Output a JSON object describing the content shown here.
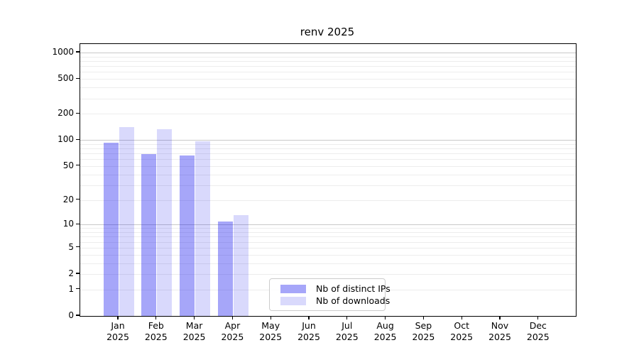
{
  "chart_data": {
    "type": "bar",
    "title": "renv 2025",
    "x_year_label": "2025",
    "categories": [
      "Jan",
      "Feb",
      "Mar",
      "Apr",
      "May",
      "Jun",
      "Jul",
      "Aug",
      "Sep",
      "Oct",
      "Nov",
      "Dec"
    ],
    "series": [
      {
        "name": "Nb of distinct IPs",
        "color": "#a6a6f8",
        "fill": "rgba(0,0,238,0.35)",
        "values": [
          93,
          69,
          66,
          11,
          0,
          0,
          0,
          0,
          0,
          0,
          0,
          0
        ]
      },
      {
        "name": "Nb of downloads",
        "color": "#d9d9fb",
        "fill": "rgba(0,0,238,0.15)",
        "values": [
          142,
          132,
          96,
          13,
          0,
          0,
          0,
          0,
          0,
          0,
          0,
          0
        ]
      }
    ],
    "y_scale": "log10(value+1)",
    "y_ticks": [
      0,
      1,
      2,
      5,
      10,
      20,
      50,
      100,
      200,
      500,
      1000
    ],
    "ylim": [
      0,
      1250
    ],
    "xlabel": "",
    "ylabel": "",
    "grid": true,
    "legend": {
      "position": "lower-center",
      "border_color": "#cccccc",
      "background": "#ffffff"
    },
    "colors": {
      "major_gridline": "#c9c9c9",
      "minor_gridline": "#ededed",
      "axis": "#000000"
    }
  }
}
